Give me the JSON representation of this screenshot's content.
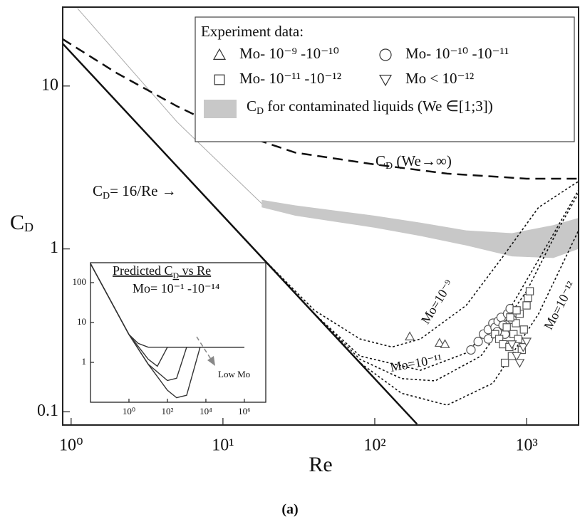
{
  "chart_data": [
    {
      "type": "line",
      "xlabel": "Re",
      "ylabel": {
        "base": "C",
        "sub": "D"
      },
      "log_x": true,
      "log_y": true,
      "xlim": [
        0.88,
        2200
      ],
      "ylim": [
        0.083,
        30.5
      ],
      "xticks": [
        {
          "value": 1,
          "label": "10⁰"
        },
        {
          "value": 10,
          "label": "10¹"
        },
        {
          "value": 100,
          "label": "10²"
        },
        {
          "value": 1000,
          "label": "10³"
        }
      ],
      "yticks": [
        0.1,
        1,
        10
      ],
      "legend_title": "Experiment data:",
      "legend": "upper right",
      "series": [
        {
          "type": "area",
          "name": {
            "base": "C",
            "sub": "D",
            "rest": " for contaminated liquids (We ∈[1;3])"
          },
          "color": "#c8c8c8",
          "x": [
            18,
            30,
            60,
            100,
            200,
            400,
            800,
            1500,
            2200
          ],
          "values": [
            2.0,
            1.85,
            1.7,
            1.6,
            1.45,
            1.3,
            1.25,
            1.4,
            1.55
          ],
          "lower": [
            1.8,
            1.6,
            1.45,
            1.35,
            1.2,
            1.05,
            0.9,
            0.88,
            1.0
          ]
        },
        {
          "type": "line",
          "style": "solid",
          "linewidth": 1,
          "color": "#aaaaaa",
          "x": [
            1.1,
            5,
            18
          ],
          "values": [
            30,
            6,
            1.9
          ]
        },
        {
          "type": "line",
          "style": "solid",
          "linewidth": 2.5,
          "color": "#111111",
          "x": [
            0.88,
            190
          ],
          "values": [
            18.2,
            0.084
          ]
        },
        {
          "type": "line",
          "style": "dashed",
          "linewidth": 2.5,
          "color": "#111111",
          "x": [
            0.88,
            2,
            5,
            10,
            30,
            100,
            300,
            1000,
            2200
          ],
          "values": [
            19.4,
            12,
            7.5,
            5.5,
            3.9,
            3.3,
            2.9,
            2.7,
            2.7
          ]
        },
        {
          "type": "line",
          "style": "dotted",
          "linewidth": 1.6,
          "color": "#111111",
          "x": [
            18,
            40,
            80,
            130,
            200,
            400,
            700,
            1200,
            2200
          ],
          "values": [
            0.89,
            0.42,
            0.28,
            0.25,
            0.28,
            0.45,
            0.9,
            1.8,
            2.6
          ]
        },
        {
          "type": "line",
          "style": "dotted",
          "linewidth": 1.6,
          "color": "#111111",
          "x": [
            18,
            40,
            80,
            200,
            400,
            800,
            1400,
            2200
          ],
          "values": [
            0.89,
            0.4,
            0.22,
            0.18,
            0.23,
            0.45,
            1.1,
            2.3
          ]
        },
        {
          "type": "line",
          "style": "dotted",
          "linewidth": 1.6,
          "color": "#111111",
          "x": [
            18,
            40,
            80,
            150,
            250,
            500,
            1000,
            1600,
            2200
          ],
          "values": [
            0.89,
            0.4,
            0.21,
            0.16,
            0.155,
            0.22,
            0.55,
            1.3,
            2.2
          ]
        },
        {
          "type": "line",
          "style": "dotted",
          "linewidth": 1.6,
          "color": "#111111",
          "x": [
            18,
            40,
            80,
            150,
            300,
            600,
            1200,
            2200
          ],
          "values": [
            0.89,
            0.4,
            0.2,
            0.13,
            0.11,
            0.15,
            0.4,
            1.3
          ]
        },
        {
          "type": "scatter",
          "marker": "triangle",
          "name": "Mo- 10⁻⁹ -10⁻¹⁰",
          "color": "#555555",
          "x": [
            170,
            267,
            290
          ],
          "values": [
            0.29,
            0.265,
            0.26
          ]
        },
        {
          "type": "scatter",
          "marker": "circle",
          "name": "Mo- 10⁻¹⁰ -10⁻¹¹",
          "color": "#555555",
          "x": [
            430,
            480,
            520,
            560,
            600,
            620,
            650,
            680,
            700,
            720,
            750,
            780,
            800,
            560,
            640
          ],
          "values": [
            0.24,
            0.27,
            0.3,
            0.32,
            0.35,
            0.33,
            0.36,
            0.38,
            0.34,
            0.3,
            0.4,
            0.43,
            0.37,
            0.28,
            0.31
          ]
        },
        {
          "type": "scatter",
          "marker": "square",
          "name": "Mo- 10⁻¹¹ -10⁻¹²",
          "color": "#555555",
          "x": [
            620,
            660,
            700,
            740,
            770,
            800,
            820,
            850,
            880,
            900,
            930,
            960,
            1000,
            1020,
            1050,
            720,
            780,
            860
          ],
          "values": [
            0.3,
            0.28,
            0.26,
            0.33,
            0.25,
            0.22,
            0.3,
            0.35,
            0.28,
            0.4,
            0.24,
            0.32,
            0.45,
            0.5,
            0.55,
            0.2,
            0.38,
            0.42
          ]
        },
        {
          "type": "scatter",
          "marker": "down-triangle",
          "name": "Mo < 10⁻¹²",
          "color": "#555555",
          "x": [
            800,
            860,
            900,
            950,
            1000
          ],
          "values": [
            0.26,
            0.22,
            0.2,
            0.25,
            0.27
          ]
        }
      ],
      "annotations": [
        {
          "base": "C",
          "sub": "D",
          "rest": " (We→∞)"
        },
        {
          "base": "C",
          "sub": "D",
          "rest": "= 16/Re →"
        },
        "Mo=10⁻⁹",
        "Mo=10⁻¹¹",
        "Mo=10⁻¹²"
      ]
    },
    {
      "type": "line",
      "title": {
        "base": "Predicted C",
        "sub": "D",
        "rest": " vs Re"
      },
      "subtitle": "Mo= 10⁻¹ -10⁻¹⁴",
      "annotation": "Low Mo",
      "log_x": true,
      "log_y": true,
      "xlim": [
        0.01,
        13000000
      ],
      "ylim": [
        0.1,
        316
      ],
      "xticks": [
        {
          "value": 1,
          "label": "10⁰"
        },
        {
          "value": 100,
          "label": "10²"
        },
        {
          "value": 10000,
          "label": "10⁴"
        },
        {
          "value": 1000000,
          "label": "10⁶"
        }
      ],
      "yticks": [
        1,
        10,
        100
      ],
      "series": [
        {
          "type": "line",
          "style": "solid",
          "linewidth": 1.4,
          "color": "#333333",
          "x": [
            0.01,
            1,
            3,
            10,
            1000000
          ],
          "values": [
            300,
            5,
            3,
            2.4,
            2.4
          ]
        },
        {
          "type": "line",
          "style": "solid",
          "linewidth": 1.4,
          "color": "#333333",
          "x": [
            0.01,
            1,
            10,
            30,
            100,
            1000000
          ],
          "values": [
            300,
            5,
            1.2,
            0.8,
            2.4,
            2.4
          ]
        },
        {
          "type": "line",
          "style": "solid",
          "linewidth": 1.4,
          "color": "#333333",
          "x": [
            0.01,
            1,
            10,
            100,
            300,
            1000,
            1000000
          ],
          "values": [
            300,
            5,
            0.9,
            0.35,
            0.4,
            2.4,
            2.4
          ]
        },
        {
          "type": "line",
          "style": "solid",
          "linewidth": 1.4,
          "color": "#333333",
          "x": [
            0.01,
            1,
            10,
            100,
            300,
            1000,
            5000,
            1000000
          ],
          "values": [
            300,
            5,
            0.9,
            0.2,
            0.13,
            0.15,
            2.4,
            2.4
          ]
        }
      ]
    }
  ],
  "caption": "(a)"
}
